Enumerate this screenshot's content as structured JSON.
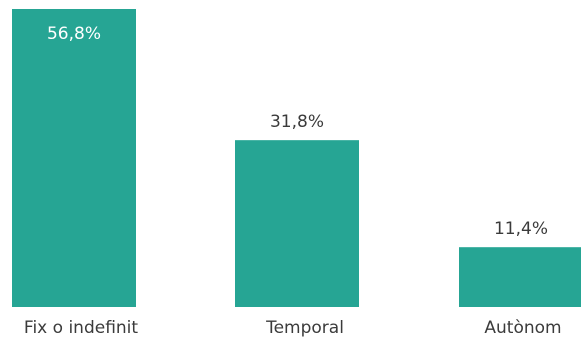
{
  "chart_data": {
    "type": "bar",
    "categories": [
      "Fix o indefinit",
      "Temporal",
      "Autònom"
    ],
    "values": [
      56.8,
      31.8,
      11.4
    ],
    "value_labels": [
      "56,8%",
      "31,8%",
      "11,4%"
    ],
    "title": "",
    "xlabel": "",
    "ylabel": "",
    "ylim": [
      0,
      56.8
    ],
    "grid": false,
    "colors": {
      "bar": "#26a594",
      "inside_label": "#ffffff",
      "outside_label": "#3b3b3b",
      "category_label": "#3b3b3b"
    }
  }
}
